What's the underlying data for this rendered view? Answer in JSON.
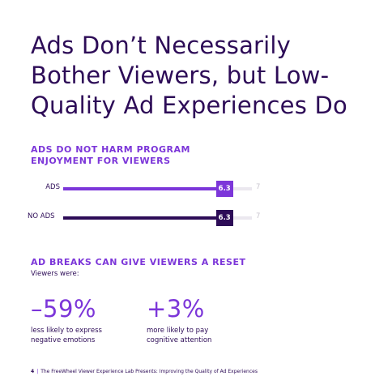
{
  "title": "Ads Don’t Necessarily Bother Viewers, but Low-Quality Ad Experiences Do",
  "section1": {
    "heading": "ADS DO NOT HARM PROGRAM ENJOYMENT FOR VIEWERS"
  },
  "chart_data": {
    "type": "bar",
    "categories": [
      "ADS",
      "NO ADS"
    ],
    "values": [
      6.3,
      6.3
    ],
    "value_labels": [
      "6.3",
      "6.3"
    ],
    "max_label": "7",
    "xlim": [
      0,
      7
    ],
    "colors": [
      "#7c36d9",
      "#2d0c57"
    ],
    "track_color": "#ebe8ef"
  },
  "section2": {
    "heading": "AD BREAKS CAN GIVE VIEWERS A RESET",
    "intro": "Viewers were:",
    "stats": [
      {
        "value": "–59%",
        "desc": "less likely to express negative emotions"
      },
      {
        "value": "+3%",
        "desc": "more likely to pay cognitive attention"
      }
    ]
  },
  "footer": {
    "page": "4",
    "separator": "|",
    "text": "The FreeWheel Viewer Experience Lab Presents: Improving the Quality of Ad Experiences"
  },
  "colors": {
    "accent": "#7c36d9",
    "dark": "#2d0c57"
  }
}
